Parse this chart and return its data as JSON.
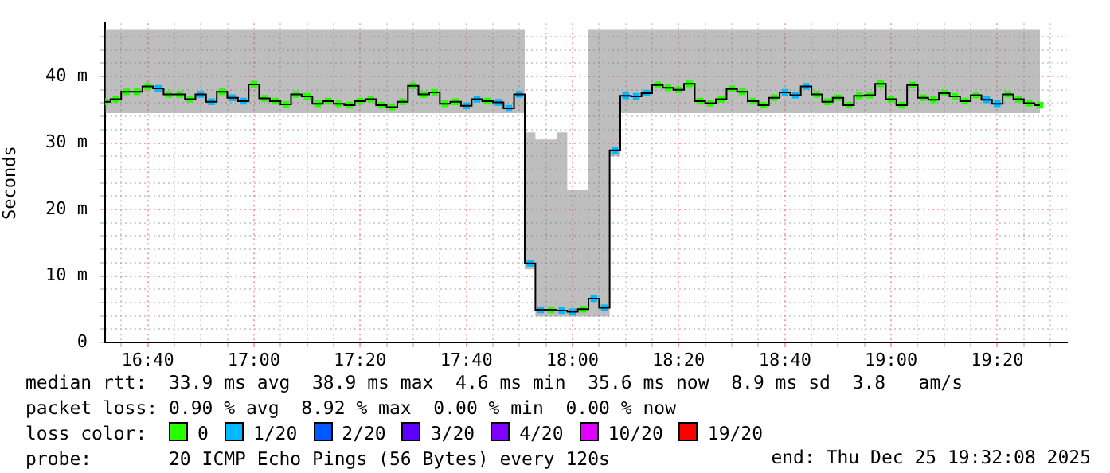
{
  "chart_data": {
    "type": "step",
    "ylabel": "Seconds",
    "grid": true,
    "legend": "bottom",
    "legend_title": "loss color:",
    "xlim": [
      16.533,
      19.552
    ],
    "ylim": [
      0,
      48
    ],
    "xticks": [
      {
        "value": 16.583,
        "label": null
      },
      {
        "value": 16.667,
        "label": "16:40"
      },
      {
        "value": 16.75,
        "label": null
      },
      {
        "value": 16.833,
        "label": null
      },
      {
        "value": 16.917,
        "label": null
      },
      {
        "value": 17,
        "label": "17:00"
      },
      {
        "value": 17.083,
        "label": null
      },
      {
        "value": 17.167,
        "label": null
      },
      {
        "value": 17.25,
        "label": null
      },
      {
        "value": 17.333,
        "label": "17:20"
      },
      {
        "value": 17.417,
        "label": null
      },
      {
        "value": 17.5,
        "label": null
      },
      {
        "value": 17.583,
        "label": null
      },
      {
        "value": 17.667,
        "label": "17:40"
      },
      {
        "value": 17.75,
        "label": null
      },
      {
        "value": 17.833,
        "label": null
      },
      {
        "value": 17.917,
        "label": null
      },
      {
        "value": 18,
        "label": "18:00"
      },
      {
        "value": 18.083,
        "label": null
      },
      {
        "value": 18.167,
        "label": null
      },
      {
        "value": 18.25,
        "label": null
      },
      {
        "value": 18.333,
        "label": "18:20"
      },
      {
        "value": 18.417,
        "label": null
      },
      {
        "value": 18.5,
        "label": null
      },
      {
        "value": 18.583,
        "label": null
      },
      {
        "value": 18.667,
        "label": "18:40"
      },
      {
        "value": 18.75,
        "label": null
      },
      {
        "value": 18.833,
        "label": null
      },
      {
        "value": 18.917,
        "label": null
      },
      {
        "value": 19,
        "label": "19:00"
      },
      {
        "value": 19.083,
        "label": null
      },
      {
        "value": 19.167,
        "label": null
      },
      {
        "value": 19.25,
        "label": null
      },
      {
        "value": 19.333,
        "label": "19:20"
      },
      {
        "value": 19.417,
        "label": null
      },
      {
        "value": 19.5,
        "label": null
      }
    ],
    "yticks": [
      0,
      {
        "value": 2,
        "label": null
      },
      {
        "value": 4,
        "label": null
      },
      {
        "value": 6,
        "label": null
      },
      {
        "value": 8,
        "label": null
      },
      {
        "value": 10,
        "label": "10 m"
      },
      {
        "value": 12,
        "label": null
      },
      {
        "value": 14,
        "label": null
      },
      {
        "value": 16,
        "label": null
      },
      {
        "value": 18,
        "label": null
      },
      {
        "value": 20,
        "label": "20 m"
      },
      {
        "value": 22,
        "label": null
      },
      {
        "value": 24,
        "label": null
      },
      {
        "value": 26,
        "label": null
      },
      {
        "value": 28,
        "label": null
      },
      {
        "value": 30,
        "label": "30 m"
      },
      {
        "value": 32,
        "label": null
      },
      {
        "value": 34,
        "label": null
      },
      {
        "value": 36,
        "label": null
      },
      {
        "value": 38,
        "label": null
      },
      {
        "value": 40,
        "label": "40 m"
      },
      {
        "value": 42,
        "label": null
      },
      {
        "value": 44,
        "label": null
      },
      {
        "value": 46,
        "label": null
      }
    ],
    "x": [
      16.533,
      16.567,
      16.6,
      16.633,
      16.667,
      16.7,
      16.733,
      16.767,
      16.8,
      16.833,
      16.867,
      16.9,
      16.933,
      16.967,
      17,
      17.033,
      17.067,
      17.1,
      17.133,
      17.167,
      17.2,
      17.233,
      17.267,
      17.3,
      17.333,
      17.367,
      17.4,
      17.433,
      17.467,
      17.5,
      17.533,
      17.567,
      17.6,
      17.633,
      17.667,
      17.7,
      17.733,
      17.767,
      17.8,
      17.833,
      17.867,
      17.9,
      17.933,
      17.967,
      18,
      18.033,
      18.067,
      18.1,
      18.133,
      18.167,
      18.2,
      18.233,
      18.267,
      18.3,
      18.333,
      18.367,
      18.4,
      18.433,
      18.467,
      18.5,
      18.533,
      18.567,
      18.6,
      18.633,
      18.667,
      18.7,
      18.733,
      18.767,
      18.8,
      18.833,
      18.867,
      18.9,
      18.933,
      18.967,
      19,
      19.033,
      19.067,
      19.1,
      19.133,
      19.167,
      19.2,
      19.233,
      19.267,
      19.3,
      19.333,
      19.367,
      19.4,
      19.433,
      19.467
    ],
    "series": [
      {
        "color": "#000000",
        "values": [
          36.2,
          36.6,
          37.7,
          37.7,
          38.5,
          38.2,
          37.3,
          37.3,
          36.6,
          37.3,
          36.2,
          37.7,
          36.8,
          36.3,
          38.8,
          36.7,
          36.3,
          35.8,
          37.3,
          37,
          35.9,
          36.3,
          35.9,
          35.7,
          36.3,
          36.6,
          35.7,
          35.4,
          36.2,
          38.6,
          37.3,
          37.6,
          35.9,
          36.2,
          35.6,
          36.6,
          36.3,
          36.1,
          35.2,
          37.3,
          11.9,
          4.9,
          4.9,
          4.8,
          4.6,
          5,
          6.6,
          5.2,
          28.9,
          37.1,
          37,
          37.5,
          38.7,
          38.3,
          38,
          38.9,
          36.3,
          36,
          36.6,
          38.1,
          37.7,
          36.3,
          35.7,
          36.8,
          37.6,
          37.2,
          38.5,
          37.3,
          36.2,
          36.8,
          35.7,
          37.1,
          37.2,
          38.9,
          36.6,
          35.7,
          38.7,
          36.8,
          36.5,
          37.5,
          37,
          36.3,
          37.2,
          36.5,
          35.9,
          37.3,
          36.6,
          36,
          35.7
        ],
        "lower": [
          34.5,
          34.5,
          34.5,
          34.5,
          34.5,
          34.5,
          34.5,
          34.5,
          34.5,
          34.5,
          34.5,
          34.5,
          34.5,
          34.5,
          34.5,
          34.5,
          34.5,
          34.5,
          34.5,
          34.5,
          34.5,
          34.5,
          34.5,
          34.5,
          34.5,
          34.5,
          34.5,
          34.5,
          34.5,
          34.5,
          34.5,
          34.5,
          34.5,
          34.5,
          34.5,
          34.5,
          34.5,
          34.5,
          34.5,
          34.5,
          11,
          3.9,
          3.9,
          3.9,
          3.9,
          3.9,
          3.9,
          3.9,
          28,
          34.5,
          34.5,
          34.5,
          34.5,
          34.5,
          34.5,
          34.5,
          34.5,
          34.5,
          34.5,
          34.5,
          34.5,
          34.5,
          34.5,
          34.5,
          34.5,
          34.5,
          34.5,
          34.5,
          34.5,
          34.5,
          34.5,
          34.5,
          34.5,
          34.5,
          34.5,
          34.5,
          34.5,
          34.5,
          34.5,
          34.5,
          34.5,
          34.5,
          34.5,
          34.5,
          34.5,
          34.5,
          34.5,
          34.5,
          34.5
        ],
        "upper": [
          47,
          47,
          47,
          47,
          47,
          47,
          47,
          47,
          47,
          47,
          47,
          47,
          47,
          47,
          47,
          47,
          47,
          47,
          47,
          47,
          47,
          47,
          47,
          47,
          47,
          47,
          47,
          47,
          47,
          47,
          47,
          47,
          47,
          47,
          47,
          47,
          47,
          47,
          47,
          47,
          31.6,
          30.5,
          30.5,
          31.6,
          23,
          23,
          47,
          47,
          47,
          47,
          47,
          47,
          47,
          47,
          47,
          47,
          47,
          47,
          47,
          47,
          47,
          47,
          47,
          47,
          47,
          47,
          47,
          47,
          47,
          47,
          47,
          47,
          47,
          47,
          47,
          47,
          47,
          47,
          47,
          47,
          47,
          47,
          47,
          47,
          47,
          47,
          47,
          47,
          47
        ]
      },
      {
        "type": "scatter",
        "marker": "square",
        "name": "0",
        "color": "#26ff00",
        "values": [
          36.2,
          36.6,
          37.7,
          37.7,
          38.5,
          null,
          37.3,
          37.3,
          36.6,
          null,
          null,
          37.7,
          null,
          null,
          38.8,
          36.7,
          36.3,
          35.8,
          37.3,
          37,
          35.9,
          36.3,
          35.9,
          35.7,
          36.3,
          36.6,
          35.7,
          35.4,
          36.2,
          38.6,
          37.3,
          37.6,
          35.9,
          36.2,
          null,
          null,
          36.3,
          null,
          null,
          null,
          null,
          null,
          4.9,
          null,
          null,
          5,
          null,
          null,
          null,
          null,
          null,
          null,
          38.7,
          38.3,
          38,
          38.9,
          36.3,
          36,
          36.6,
          38.1,
          37.7,
          36.3,
          35.7,
          36.8,
          null,
          null,
          null,
          37.3,
          36.2,
          36.8,
          35.7,
          37.1,
          37.2,
          38.9,
          36.6,
          35.7,
          38.7,
          36.8,
          36.5,
          37.5,
          37,
          36.3,
          37.2,
          null,
          null,
          37.3,
          36.6,
          36,
          35.7
        ]
      },
      {
        "type": "scatter",
        "marker": "square",
        "name": "1/20",
        "color": "#00b8ff",
        "values": [
          null,
          null,
          null,
          null,
          null,
          38.2,
          null,
          null,
          null,
          37.3,
          36.2,
          null,
          36.8,
          36.3,
          null,
          null,
          null,
          null,
          null,
          null,
          null,
          null,
          null,
          null,
          null,
          null,
          null,
          null,
          null,
          null,
          null,
          null,
          null,
          null,
          35.6,
          36.6,
          null,
          36.1,
          35.2,
          37.3,
          11.9,
          4.9,
          null,
          4.8,
          4.6,
          null,
          6.6,
          5.2,
          28.9,
          37.1,
          37,
          37.5,
          null,
          null,
          null,
          null,
          null,
          null,
          null,
          null,
          null,
          null,
          null,
          null,
          37.6,
          37.2,
          38.5,
          null,
          null,
          null,
          null,
          null,
          null,
          null,
          null,
          null,
          null,
          null,
          null,
          null,
          null,
          null,
          null,
          36.5,
          35.9,
          null,
          null,
          null,
          null
        ]
      },
      {
        "type": "scatter",
        "marker": "square",
        "name": "2/20",
        "color": "#0059ff",
        "values": [
          null,
          null,
          null,
          null,
          null,
          null,
          null,
          null,
          null,
          null,
          null,
          null,
          null,
          null,
          null,
          null,
          null,
          null,
          null,
          null,
          null,
          null,
          null,
          null,
          null,
          null,
          null,
          null,
          null,
          null,
          null,
          null,
          null,
          null,
          null,
          null,
          null,
          null,
          null,
          null,
          null,
          null,
          null,
          null,
          null,
          null,
          null,
          null,
          null,
          null,
          null,
          null,
          null,
          null,
          null,
          null,
          null,
          null,
          null,
          null,
          null,
          null,
          null,
          null,
          null,
          null,
          null,
          null,
          null,
          null,
          null,
          null,
          null,
          null,
          null,
          null,
          null,
          null,
          null,
          null,
          null,
          null,
          null,
          null,
          null,
          null,
          null,
          null,
          null
        ]
      },
      {
        "type": "scatter",
        "marker": "square",
        "name": "3/20",
        "color": "#5e00ff",
        "values": [
          null,
          null,
          null,
          null,
          null,
          null,
          null,
          null,
          null,
          null,
          null,
          null,
          null,
          null,
          null,
          null,
          null,
          null,
          null,
          null,
          null,
          null,
          null,
          null,
          null,
          null,
          null,
          null,
          null,
          null,
          null,
          null,
          null,
          null,
          null,
          null,
          null,
          null,
          null,
          null,
          null,
          null,
          null,
          null,
          null,
          null,
          null,
          null,
          null,
          null,
          null,
          null,
          null,
          null,
          null,
          null,
          null,
          null,
          null,
          null,
          null,
          null,
          null,
          null,
          null,
          null,
          null,
          null,
          null,
          null,
          null,
          null,
          null,
          null,
          null,
          null,
          null,
          null,
          null,
          null,
          null,
          null,
          null,
          null,
          null,
          null,
          null,
          null,
          null
        ]
      },
      {
        "type": "scatter",
        "marker": "square",
        "name": "4/20",
        "color": "#7e00ff",
        "values": [
          null,
          null,
          null,
          null,
          null,
          null,
          null,
          null,
          null,
          null,
          null,
          null,
          null,
          null,
          null,
          null,
          null,
          null,
          null,
          null,
          null,
          null,
          null,
          null,
          null,
          null,
          null,
          null,
          null,
          null,
          null,
          null,
          null,
          null,
          null,
          null,
          null,
          null,
          null,
          null,
          null,
          null,
          null,
          null,
          null,
          null,
          null,
          null,
          null,
          null,
          null,
          null,
          null,
          null,
          null,
          null,
          null,
          null,
          null,
          null,
          null,
          null,
          null,
          null,
          null,
          null,
          null,
          null,
          null,
          null,
          null,
          null,
          null,
          null,
          null,
          null,
          null,
          null,
          null,
          null,
          null,
          null,
          null,
          null,
          null,
          null,
          null,
          null,
          null
        ]
      },
      {
        "type": "scatter",
        "marker": "square",
        "name": "10/20",
        "color": "#dd00ff",
        "values": [
          null,
          null,
          null,
          null,
          null,
          null,
          null,
          null,
          null,
          null,
          null,
          null,
          null,
          null,
          null,
          null,
          null,
          null,
          null,
          null,
          null,
          null,
          null,
          null,
          null,
          null,
          null,
          null,
          null,
          null,
          null,
          null,
          null,
          null,
          null,
          null,
          null,
          null,
          null,
          null,
          null,
          null,
          null,
          null,
          null,
          null,
          null,
          null,
          null,
          null,
          null,
          null,
          null,
          null,
          null,
          null,
          null,
          null,
          null,
          null,
          null,
          null,
          null,
          null,
          null,
          null,
          null,
          null,
          null,
          null,
          null,
          null,
          null,
          null,
          null,
          null,
          null,
          null,
          null,
          null,
          null,
          null,
          null,
          null,
          null,
          null,
          null,
          null,
          null
        ]
      },
      {
        "type": "scatter",
        "marker": "square",
        "name": "19/20",
        "color": "#ff0000",
        "values": [
          null,
          null,
          null,
          null,
          null,
          null,
          null,
          null,
          null,
          null,
          null,
          null,
          null,
          null,
          null,
          null,
          null,
          null,
          null,
          null,
          null,
          null,
          null,
          null,
          null,
          null,
          null,
          null,
          null,
          null,
          null,
          null,
          null,
          null,
          null,
          null,
          null,
          null,
          null,
          null,
          null,
          null,
          null,
          null,
          null,
          null,
          null,
          null,
          null,
          null,
          null,
          null,
          null,
          null,
          null,
          null,
          null,
          null,
          null,
          null,
          null,
          null,
          null,
          null,
          null,
          null,
          null,
          null,
          null,
          null,
          null,
          null,
          null,
          null,
          null,
          null,
          null,
          null,
          null,
          null,
          null,
          null,
          null,
          null,
          null,
          null,
          null,
          null,
          null
        ]
      }
    ],
    "annotations": [
      "median rtt:  33.9 ms avg  38.9 ms max  4.6 ms min  35.6 ms now  8.9 ms sd  3.8   am/s",
      "packet loss: 0.90 % avg  8.92 % max  0.00 % min  0.00 % now",
      "probe:       20 ICMP Echo Pings (56 Bytes) every 120s",
      "end: Thu Dec 25 19:32:08 2025"
    ]
  }
}
